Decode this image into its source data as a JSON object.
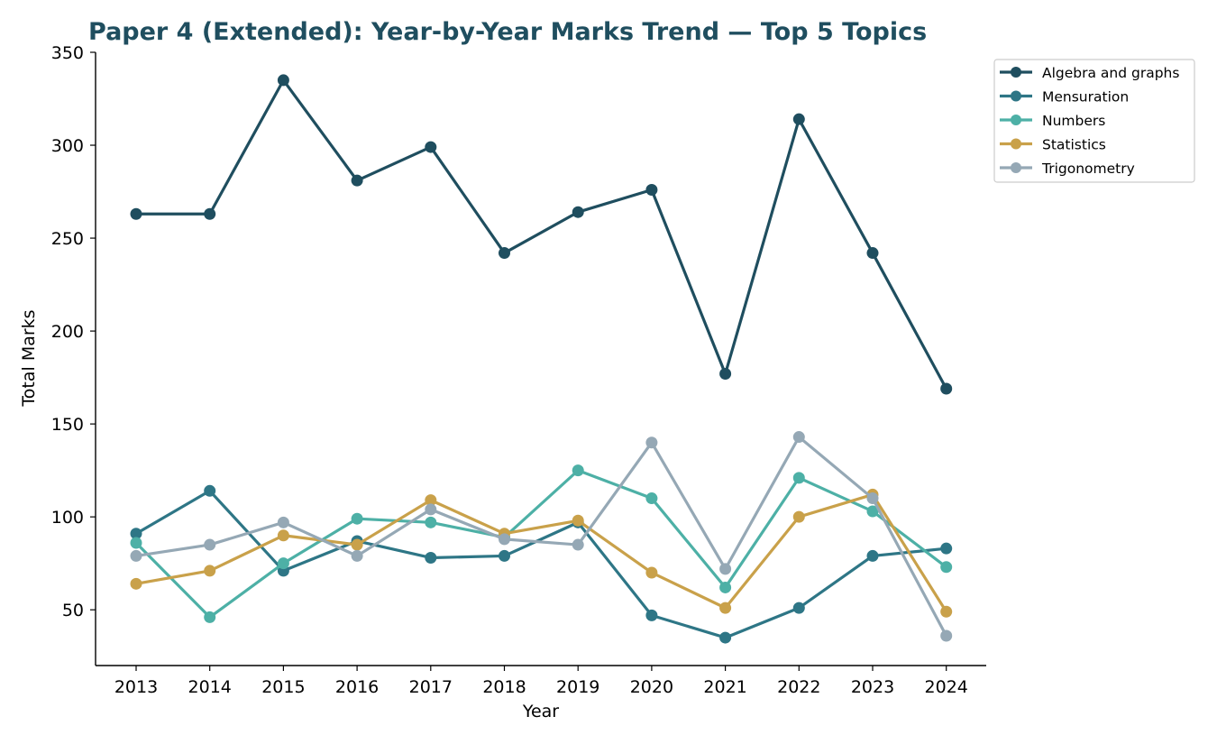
{
  "chart_data": {
    "type": "line",
    "title": "Paper 4 (Extended): Year-by-Year Marks Trend — Top 5 Topics",
    "xlabel": "Year",
    "ylabel": "Total Marks",
    "x": [
      2013,
      2014,
      2015,
      2016,
      2017,
      2018,
      2019,
      2020,
      2021,
      2022,
      2023,
      2024
    ],
    "ylim": [
      20,
      350
    ],
    "yticks": [
      50,
      100,
      150,
      200,
      250,
      300,
      350
    ],
    "grid": false,
    "legend_position": "top-right outside",
    "title_color": "#1f4e5f",
    "series": [
      {
        "name": "Algebra and graphs",
        "color": "#1f4e5f",
        "values": [
          263,
          263,
          335,
          281,
          299,
          242,
          264,
          276,
          177,
          314,
          242,
          169
        ]
      },
      {
        "name": "Mensuration",
        "color": "#2e7686",
        "values": [
          91,
          114,
          71,
          87,
          78,
          79,
          97,
          47,
          35,
          51,
          79,
          83
        ]
      },
      {
        "name": "Numbers",
        "color": "#4db0a6",
        "values": [
          86,
          46,
          75,
          99,
          97,
          89,
          125,
          110,
          62,
          121,
          103,
          73
        ]
      },
      {
        "name": "Statistics",
        "color": "#c9a14a",
        "values": [
          64,
          71,
          90,
          85,
          109,
          91,
          98,
          70,
          51,
          100,
          112,
          49
        ]
      },
      {
        "name": "Trigonometry",
        "color": "#95a8b5",
        "values": [
          79,
          85,
          97,
          79,
          104,
          88,
          85,
          140,
          72,
          143,
          110,
          36
        ]
      }
    ]
  }
}
